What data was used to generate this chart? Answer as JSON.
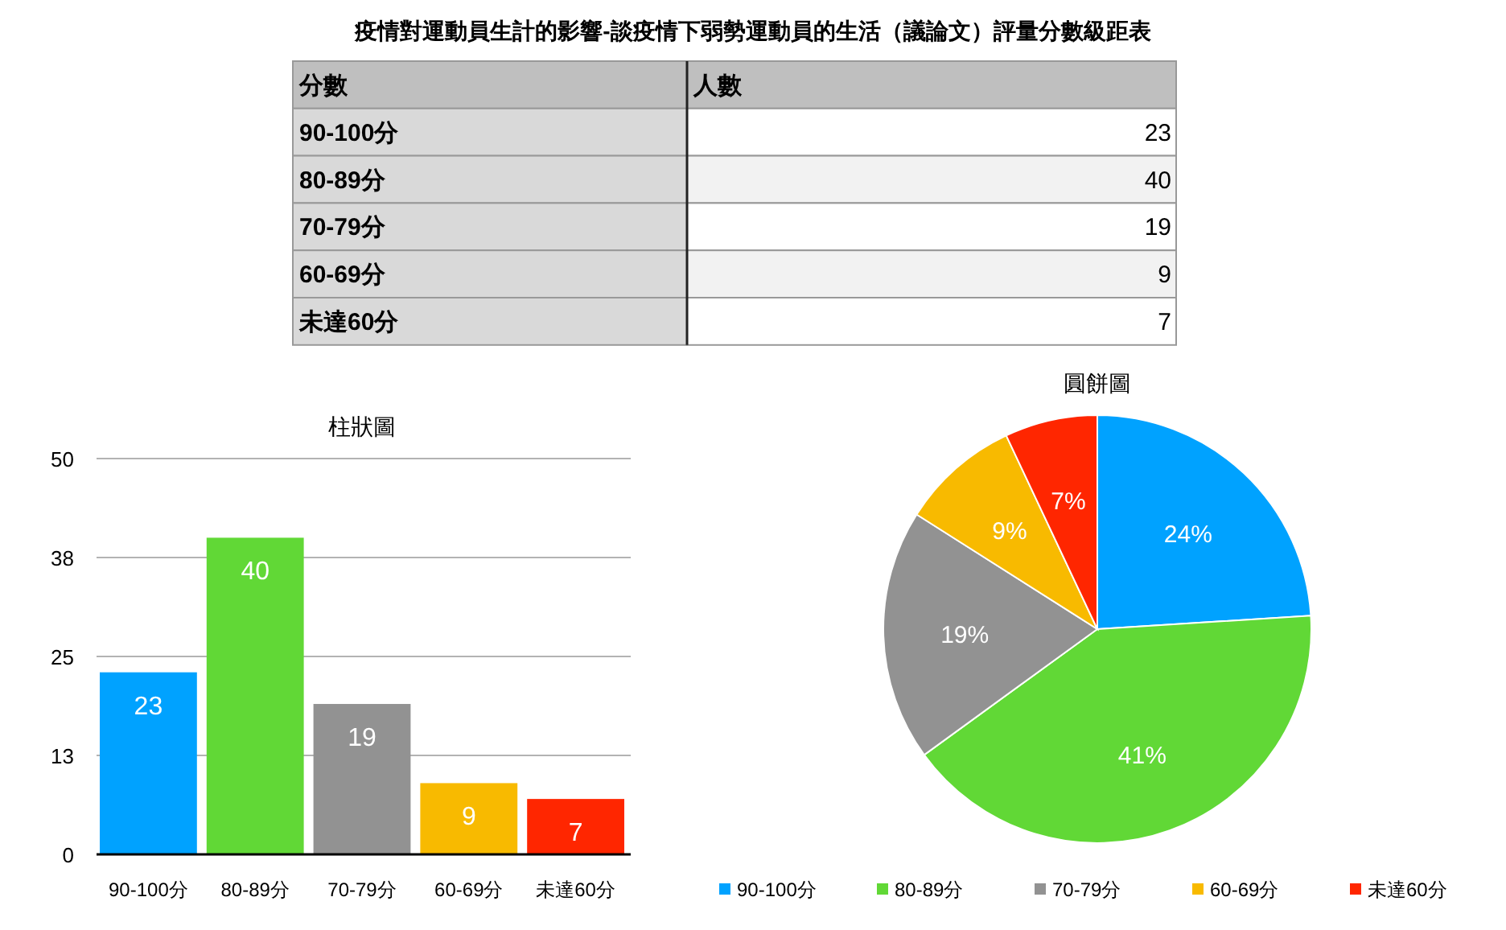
{
  "chart_data": [
    {
      "type": "other",
      "title": "疫情對運動員生計的影響-談疫情下弱勢運動員的生活（議論文）評量分數級距表",
      "xlabel": "分數",
      "ylabel": "人數",
      "categories": [
        "90-100分",
        "80-89分",
        "70-79分",
        "60-69分",
        "未達60分"
      ],
      "values": [
        23,
        40,
        19,
        9,
        7
      ],
      "data_labels": true
    },
    {
      "type": "bar",
      "title": "柱狀圖",
      "categories": [
        "90-100分",
        "80-89分",
        "70-79分",
        "60-69分",
        "未達60分"
      ],
      "values": [
        23,
        40,
        19,
        9,
        7
      ],
      "colors": [
        "#00a2ff",
        "#61d836",
        "#929292",
        "#f8ba00",
        "#ff2600"
      ],
      "ylim": [
        0,
        50
      ],
      "yticks": [
        0,
        {
          "value": 12.5,
          "label": "13"
        },
        25,
        {
          "value": 37.5,
          "label": "38"
        },
        50
      ],
      "grid": "y",
      "data_labels": true
    },
    {
      "type": "pie",
      "title": "圓餅圖",
      "categories": [
        "90-100分",
        "80-89分",
        "70-79分",
        "60-69分",
        "未達60分"
      ],
      "values": [
        24,
        41,
        19,
        9,
        7
      ],
      "colors": [
        "#00a2ff",
        "#61d836",
        "#929292",
        "#f8ba00",
        "#ff2600"
      ],
      "value_labels": [
        "24%",
        "41%",
        "19%",
        "9%",
        "7%"
      ],
      "legend": "bottom"
    }
  ]
}
